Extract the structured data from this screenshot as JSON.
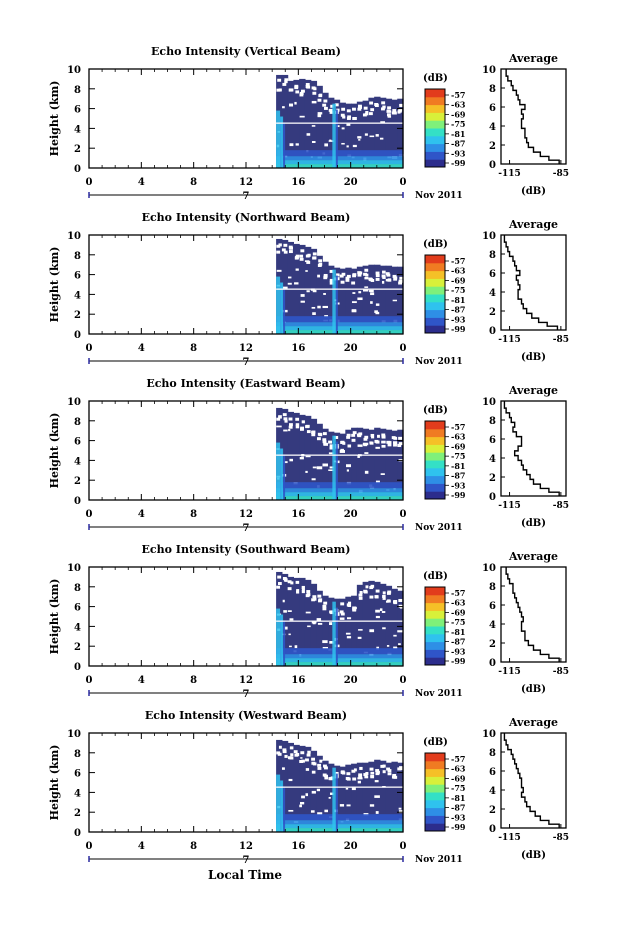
{
  "chart_data": [
    {
      "type": "heatmap",
      "title": "Echo Intensity (Vertical Beam)",
      "ylabel": "Height (km)",
      "xlim": [
        0,
        24
      ],
      "ylim": [
        0,
        10
      ],
      "x_ticks": [
        "0",
        "4",
        "8",
        "12",
        "16",
        "20",
        "0"
      ],
      "y_ticks": [
        "0",
        "2",
        "4",
        "6",
        "8",
        "10"
      ],
      "date_marker": "7",
      "date_label": "Nov 2011",
      "colorbar": {
        "label": "(dB)",
        "ticks": [
          "-57",
          "-63",
          "-69",
          "-75",
          "-81",
          "-87",
          "-93",
          "-99"
        ]
      },
      "data_start_hour": 14.3,
      "top_height": [
        9.4,
        9.4,
        8.8,
        8.9,
        9.0,
        8.9,
        8.8,
        8.3,
        7.6,
        7.1,
        6.9,
        6.6,
        6.5,
        6.5,
        6.7,
        6.8,
        7.1,
        7.2,
        7.1,
        7.0,
        6.9,
        7.0
      ],
      "average": {
        "title": "Average",
        "xlabel": "(dB)",
        "x_ticks": [
          "-115",
          "-85"
        ],
        "y_ticks": [
          "0",
          "2",
          "4",
          "6",
          "8",
          "10"
        ],
        "xlim": [
          -120,
          -82
        ],
        "heights": [
          0.2,
          0.6,
          1.0,
          1.5,
          2.0,
          2.5,
          3.0,
          3.5,
          4.0,
          4.5,
          5.0,
          5.5,
          6.0,
          6.5,
          7.0,
          7.5,
          8.0,
          8.5,
          9.0,
          9.5
        ],
        "values": [
          -86,
          -92,
          -97,
          -101,
          -104,
          -105,
          -106,
          -106,
          -108,
          -108,
          -107,
          -108,
          -106,
          -109,
          -110,
          -111,
          -113,
          -114,
          -116,
          -117
        ]
      }
    },
    {
      "type": "heatmap",
      "title": "Echo Intensity (Northward Beam)",
      "ylabel": "Height (km)",
      "xlim": [
        0,
        24
      ],
      "ylim": [
        0,
        10
      ],
      "x_ticks": [
        "0",
        "4",
        "8",
        "12",
        "16",
        "20",
        "0"
      ],
      "y_ticks": [
        "0",
        "2",
        "4",
        "6",
        "8",
        "10"
      ],
      "date_marker": "7",
      "date_label": "Nov 2011",
      "colorbar": {
        "label": "(dB)",
        "ticks": [
          "-57",
          "-63",
          "-69",
          "-75",
          "-81",
          "-87",
          "-93",
          "-99"
        ]
      },
      "data_start_hour": 14.3,
      "top_height": [
        9.6,
        9.5,
        9.3,
        9.1,
        9.0,
        8.8,
        8.6,
        7.9,
        7.3,
        6.9,
        6.7,
        6.6,
        6.7,
        6.6,
        6.8,
        6.9,
        7.0,
        7.0,
        6.9,
        6.9,
        6.8,
        6.8
      ],
      "average": {
        "title": "Average",
        "xlabel": "(dB)",
        "x_ticks": [
          "-115",
          "-85"
        ],
        "y_ticks": [
          "0",
          "2",
          "4",
          "6",
          "8",
          "10"
        ],
        "xlim": [
          -120,
          -82
        ],
        "heights": [
          0.2,
          0.6,
          1.0,
          1.5,
          2.0,
          2.5,
          3.0,
          3.5,
          4.0,
          4.5,
          5.0,
          5.5,
          6.0,
          6.5,
          7.0,
          7.5,
          8.0,
          8.5,
          9.0,
          9.5
        ],
        "values": [
          -87,
          -93,
          -98,
          -102,
          -105,
          -107,
          -108,
          -110,
          -110,
          -109,
          -110,
          -111,
          -109,
          -111,
          -112,
          -113,
          -115,
          -116,
          -117,
          -118
        ]
      }
    },
    {
      "type": "heatmap",
      "title": "Echo Intensity (Eastward Beam)",
      "ylabel": "Height (km)",
      "xlim": [
        0,
        24
      ],
      "ylim": [
        0,
        10
      ],
      "x_ticks": [
        "0",
        "4",
        "8",
        "12",
        "16",
        "20",
        "0"
      ],
      "y_ticks": [
        "0",
        "2",
        "4",
        "6",
        "8",
        "10"
      ],
      "date_marker": "7",
      "date_label": "Nov 2011",
      "colorbar": {
        "label": "(dB)",
        "ticks": [
          "-57",
          "-63",
          "-69",
          "-75",
          "-81",
          "-87",
          "-93",
          "-99"
        ]
      },
      "data_start_hour": 14.3,
      "top_height": [
        9.3,
        9.2,
        8.9,
        8.8,
        8.6,
        8.5,
        8.2,
        7.7,
        7.2,
        6.9,
        6.8,
        6.7,
        7.1,
        7.3,
        7.3,
        7.2,
        7.1,
        7.3,
        7.2,
        7.1,
        7.0,
        7.1
      ],
      "average": {
        "title": "Average",
        "xlabel": "(dB)",
        "x_ticks": [
          "-115",
          "-85"
        ],
        "y_ticks": [
          "0",
          "2",
          "4",
          "6",
          "8",
          "10"
        ],
        "xlim": [
          -120,
          -82
        ],
        "heights": [
          0.2,
          0.6,
          1.0,
          1.5,
          2.0,
          2.5,
          3.0,
          3.5,
          4.0,
          4.5,
          5.0,
          5.5,
          6.0,
          6.5,
          7.0,
          7.5,
          8.0,
          8.5,
          9.0,
          9.5
        ],
        "values": [
          -86,
          -92,
          -97,
          -101,
          -103,
          -105,
          -107,
          -108,
          -110,
          -112,
          -110,
          -108,
          -108,
          -111,
          -113,
          -112,
          -114,
          -115,
          -117,
          -118
        ]
      }
    },
    {
      "type": "heatmap",
      "title": "Echo Intensity (Southward Beam)",
      "ylabel": "Height (km)",
      "xlim": [
        0,
        24
      ],
      "ylim": [
        0,
        10
      ],
      "x_ticks": [
        "0",
        "4",
        "8",
        "12",
        "16",
        "20",
        "0"
      ],
      "y_ticks": [
        "0",
        "2",
        "4",
        "6",
        "8",
        "10"
      ],
      "date_marker": "7",
      "date_label": "Nov 2011",
      "colorbar": {
        "label": "(dB)",
        "ticks": [
          "-57",
          "-63",
          "-69",
          "-75",
          "-81",
          "-87",
          "-93",
          "-99"
        ]
      },
      "data_start_hour": 14.3,
      "top_height": [
        9.5,
        9.3,
        9.0,
        8.9,
        8.9,
        8.7,
        8.3,
        7.6,
        7.1,
        6.9,
        6.8,
        6.8,
        7.0,
        7.1,
        8.2,
        8.5,
        8.6,
        8.5,
        8.3,
        8.1,
        7.8,
        7.6
      ],
      "average": {
        "title": "Average",
        "xlabel": "(dB)",
        "x_ticks": [
          "-115",
          "-85"
        ],
        "y_ticks": [
          "0",
          "2",
          "4",
          "6",
          "8",
          "10"
        ],
        "xlim": [
          -120,
          -82
        ],
        "heights": [
          0.2,
          0.6,
          1.0,
          1.5,
          2.0,
          2.5,
          3.0,
          3.5,
          4.0,
          4.5,
          5.0,
          5.5,
          6.0,
          6.5,
          7.0,
          7.5,
          8.0,
          8.5,
          9.0,
          9.5
        ],
        "values": [
          -86,
          -92,
          -97,
          -101,
          -104,
          -106,
          -106,
          -108,
          -108,
          -107,
          -108,
          -109,
          -110,
          -111,
          -112,
          -113,
          -113,
          -115,
          -116,
          -117
        ]
      }
    },
    {
      "type": "heatmap",
      "title": "Echo Intensity (Westward Beam)",
      "ylabel": "Height (km)",
      "xlim": [
        0,
        24
      ],
      "ylim": [
        0,
        10
      ],
      "x_ticks": [
        "0",
        "4",
        "8",
        "12",
        "16",
        "20",
        "0"
      ],
      "y_ticks": [
        "0",
        "2",
        "4",
        "6",
        "8",
        "10"
      ],
      "date_marker": "7",
      "date_label": "Nov 2011",
      "colorbar": {
        "label": "(dB)",
        "ticks": [
          "-57",
          "-63",
          "-69",
          "-75",
          "-81",
          "-87",
          "-93",
          "-99"
        ]
      },
      "data_start_hour": 14.3,
      "top_height": [
        9.3,
        9.2,
        9.0,
        8.8,
        8.7,
        8.6,
        8.2,
        7.7,
        7.2,
        6.9,
        6.7,
        6.6,
        6.8,
        6.9,
        7.0,
        7.0,
        7.1,
        7.3,
        7.2,
        7.0,
        7.1,
        7.0
      ],
      "average": {
        "title": "Average",
        "xlabel": "(dB)",
        "x_ticks": [
          "-115",
          "-85"
        ],
        "y_ticks": [
          "0",
          "2",
          "4",
          "6",
          "8",
          "10"
        ],
        "xlim": [
          -120,
          -82
        ],
        "heights": [
          0.2,
          0.6,
          1.0,
          1.5,
          2.0,
          2.5,
          3.0,
          3.5,
          4.0,
          4.5,
          5.0,
          5.5,
          6.0,
          6.5,
          7.0,
          7.5,
          8.0,
          8.5,
          9.0,
          9.5
        ],
        "values": [
          -86,
          -92,
          -97,
          -100,
          -103,
          -105,
          -106,
          -108,
          -107,
          -108,
          -108,
          -109,
          -110,
          -111,
          -112,
          -113,
          -114,
          -116,
          -117,
          -118
        ]
      }
    }
  ],
  "xlabel": "Local Time",
  "colors": {
    "deep": "#353a7e",
    "ramp": [
      "#2c2d8c",
      "#2f55c8",
      "#2e8fe6",
      "#2fc2ee",
      "#34e0c6",
      "#7ff07a",
      "#d8f03a",
      "#f5c027",
      "#f07b22",
      "#e23c1c"
    ]
  }
}
